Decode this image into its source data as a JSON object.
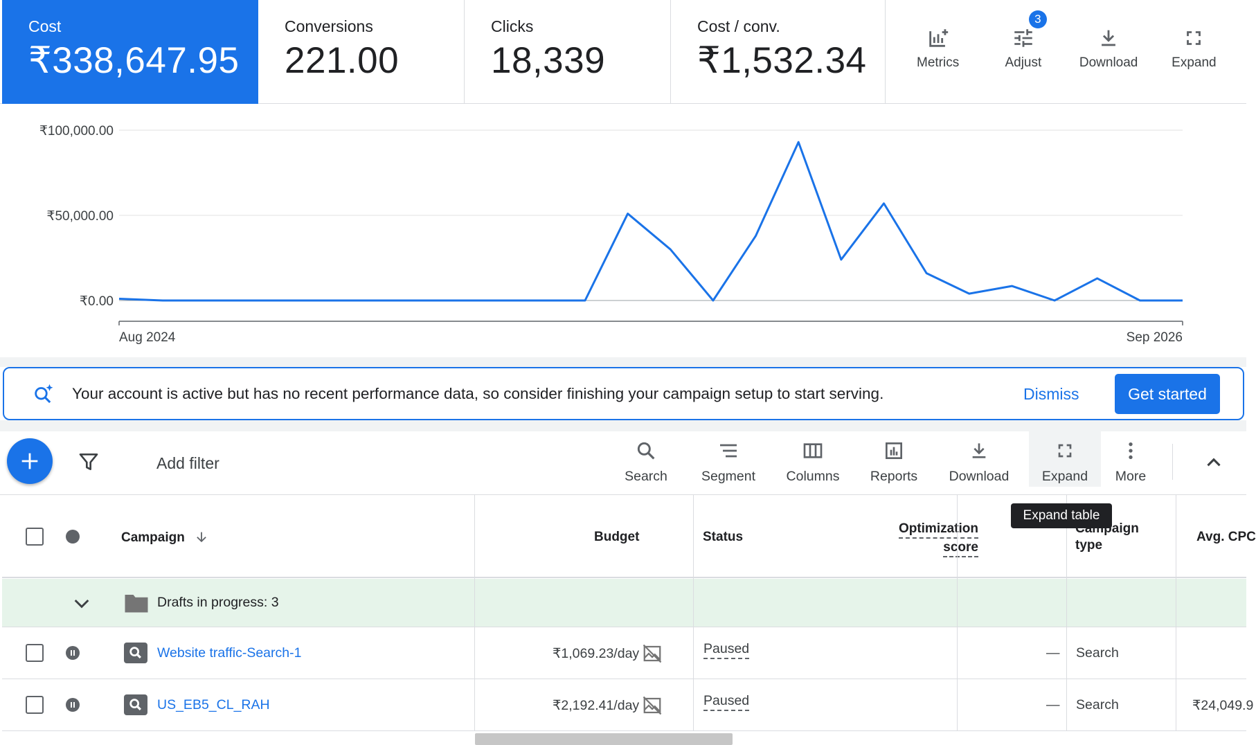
{
  "scorecards": [
    {
      "label": "Cost",
      "value": "₹338,647.95"
    },
    {
      "label": "Conversions",
      "value": "221.00"
    },
    {
      "label": "Clicks",
      "value": "18,339"
    },
    {
      "label": "Cost / conv.",
      "value": "₹1,532.34"
    }
  ],
  "chart_tools": {
    "metrics": "Metrics",
    "adjust": "Adjust",
    "adjust_badge": "3",
    "download": "Download",
    "expand": "Expand"
  },
  "chart_data": {
    "type": "line",
    "title": "",
    "xlabel": "",
    "ylabel": "",
    "x_tick_labels": [
      "Aug 2024",
      "Sep 2026"
    ],
    "y_tick_labels": [
      "₹100,000.00",
      "₹50,000.00",
      "₹0.00"
    ],
    "ylim": [
      0,
      100000
    ],
    "grid": true,
    "series": [
      {
        "color": "#1a73e8",
        "x": [
          "Aug 2024",
          "Sep 2024",
          "Oct 2024",
          "Nov 2024",
          "Dec 2024",
          "Jan 2025",
          "Feb 2025",
          "Mar 2025",
          "Apr 2025",
          "May 2025",
          "Jun 2025",
          "Jul 2025",
          "Aug 2025",
          "Sep 2025",
          "Oct 2025",
          "Nov 2025",
          "Dec 2025",
          "Jan 2026",
          "Feb 2026",
          "Mar 2026",
          "Apr 2026",
          "May 2026",
          "Jun 2026",
          "Jul 2026",
          "Aug 2026",
          "Sep 2026"
        ],
        "values": [
          1000,
          0,
          0,
          0,
          0,
          0,
          0,
          0,
          0,
          0,
          0,
          0,
          51000,
          30000,
          0,
          38000,
          93000,
          24000,
          57000,
          16000,
          4000,
          8500,
          0,
          13000,
          0,
          0
        ]
      }
    ]
  },
  "banner": {
    "text": "Your account is active but has no recent performance data, so consider finishing your campaign setup to start serving.",
    "dismiss": "Dismiss",
    "get_started": "Get started"
  },
  "table_toolbar": {
    "add_filter": "Add filter",
    "search": "Search",
    "segment": "Segment",
    "columns": "Columns",
    "reports": "Reports",
    "download": "Download",
    "expand": "Expand",
    "more": "More",
    "tooltip": "Expand table"
  },
  "table": {
    "columns": {
      "campaign": "Campaign",
      "budget": "Budget",
      "status": "Status",
      "opt_score_1": "Optimization",
      "opt_score_2": "score",
      "campaign_type_1": "Campaign",
      "campaign_type_2": "type",
      "avg_cpc": "Avg. CPC"
    },
    "drafts_label": "Drafts in progress: 3",
    "rows": [
      {
        "campaign": "Website traffic-Search-1",
        "budget": "₹1,069.23/day",
        "status": "Paused",
        "opt_score": "—",
        "type": "Search",
        "avg_cpc": ""
      },
      {
        "campaign": "US_EB5_CL_RAH",
        "budget": "₹2,192.41/day",
        "status": "Paused",
        "opt_score": "—",
        "type": "Search",
        "avg_cpc": "₹24,049.9"
      }
    ]
  }
}
